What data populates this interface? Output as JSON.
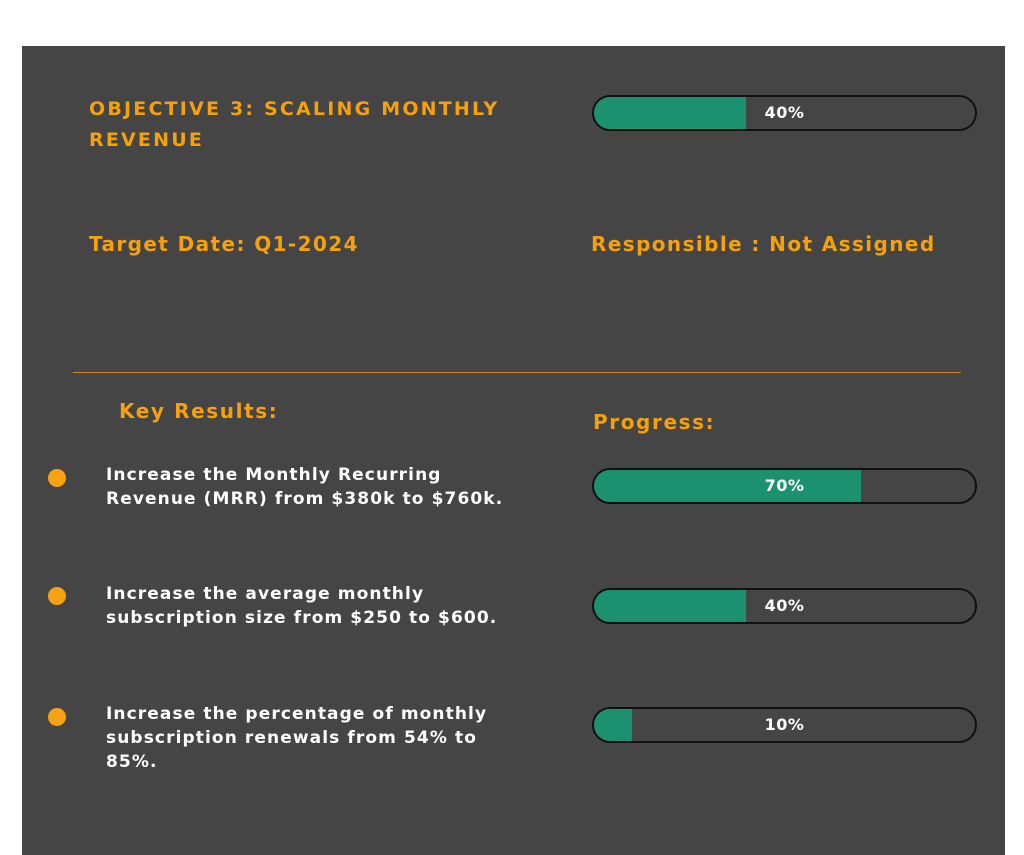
{
  "objective": {
    "title": "OBJECTIVE 3: SCALING MONTHLY REVENUE",
    "progress_label": "40%",
    "progress_value": 0.4,
    "target_date": "Target Date: Q1-2024",
    "responsible": "Responsible : Not Assigned"
  },
  "headings": {
    "key_results": "Key Results:",
    "progress": "Progress:"
  },
  "key_results": [
    {
      "text": "Increase the Monthly Recurring Revenue (MRR) from $380k to $760k.",
      "progress_label": "70%",
      "progress_value": 0.7
    },
    {
      "text": "Increase the average monthly subscription size from $250 to $600.",
      "progress_label": "40%",
      "progress_value": 0.4
    },
    {
      "text": "Increase the percentage of monthly subscription renewals from 54% to 85%.",
      "progress_label": "10%",
      "progress_value": 0.1
    }
  ],
  "colors": {
    "panel_bg": "#454545",
    "accent_orange": "#F5A10D",
    "progress_fill": "#1B9170",
    "bar_border": "#111111",
    "divider": "#C9871C"
  }
}
